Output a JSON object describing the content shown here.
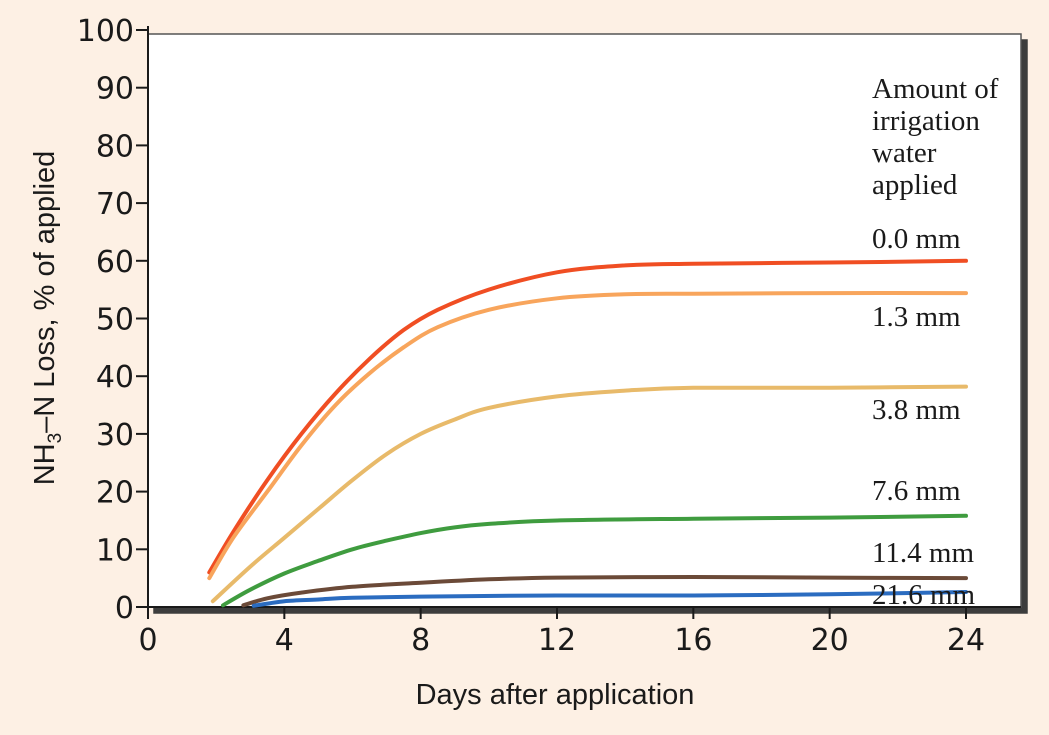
{
  "chart_data": {
    "type": "line",
    "xlabel": "Days after application",
    "ylabel_main": "NH",
    "ylabel_sub": "3",
    "ylabel_rest": "–N Loss, % of applied",
    "xlim": [
      0,
      24
    ],
    "ylim": [
      0,
      100
    ],
    "x_ticks": [
      "0",
      "4",
      "8",
      "12",
      "16",
      "20",
      "24"
    ],
    "y_ticks": [
      "0",
      "10",
      "20",
      "30",
      "40",
      "50",
      "60",
      "70",
      "80",
      "90",
      "100"
    ],
    "legend_title": [
      "Amount of",
      "irrigation",
      "water",
      "applied"
    ],
    "grid": false,
    "series": [
      {
        "name": "0.0 mm",
        "color": "#f04e23",
        "x": [
          1.8,
          2.5,
          3.5,
          4.5,
          5.5,
          6.5,
          7.5,
          8.5,
          10,
          12,
          14,
          16,
          20,
          24
        ],
        "y": [
          6,
          13,
          22,
          30,
          37,
          43,
          48,
          51.5,
          55,
          58,
          59.2,
          59.5,
          59.7,
          60
        ]
      },
      {
        "name": "1.3 mm",
        "color": "#f8a55c",
        "x": [
          1.8,
          2.5,
          3.5,
          4.5,
          5.5,
          6.5,
          7.5,
          8.5,
          10,
          12,
          14,
          16,
          20,
          24
        ],
        "y": [
          5,
          12,
          20,
          28,
          35,
          40.5,
          45,
          48.5,
          51.5,
          53.5,
          54.2,
          54.3,
          54.4,
          54.4
        ]
      },
      {
        "name": "3.8 mm",
        "color": "#e8ba6a",
        "x": [
          1.9,
          3,
          4,
          5,
          6,
          7,
          8,
          9,
          10,
          12,
          14,
          16,
          20,
          24
        ],
        "y": [
          1,
          7,
          12,
          17,
          22,
          26.5,
          30,
          32.5,
          34.5,
          36.5,
          37.5,
          38,
          38,
          38.2
        ]
      },
      {
        "name": "7.6 mm",
        "color": "#3f9c3f",
        "x": [
          2.2,
          3,
          4,
          5,
          6,
          7,
          8,
          9,
          10,
          12,
          16,
          20,
          24
        ],
        "y": [
          0.3,
          3,
          5.8,
          8,
          10,
          11.5,
          12.8,
          13.8,
          14.4,
          15,
          15.3,
          15.5,
          15.8
        ]
      },
      {
        "name": "11.4 mm",
        "color": "#6b4a38",
        "x": [
          2.8,
          3.5,
          4.5,
          6,
          8,
          10,
          12,
          16,
          20,
          24
        ],
        "y": [
          0.3,
          1.5,
          2.5,
          3.5,
          4.2,
          4.8,
          5.1,
          5.2,
          5.1,
          5
        ]
      },
      {
        "name": "21.6 mm",
        "color": "#2b6cc0",
        "x": [
          3.1,
          4,
          5,
          6,
          8,
          12,
          16,
          20,
          24
        ],
        "y": [
          0.2,
          1,
          1.3,
          1.6,
          1.8,
          2,
          2,
          2.2,
          2.6
        ]
      }
    ]
  }
}
